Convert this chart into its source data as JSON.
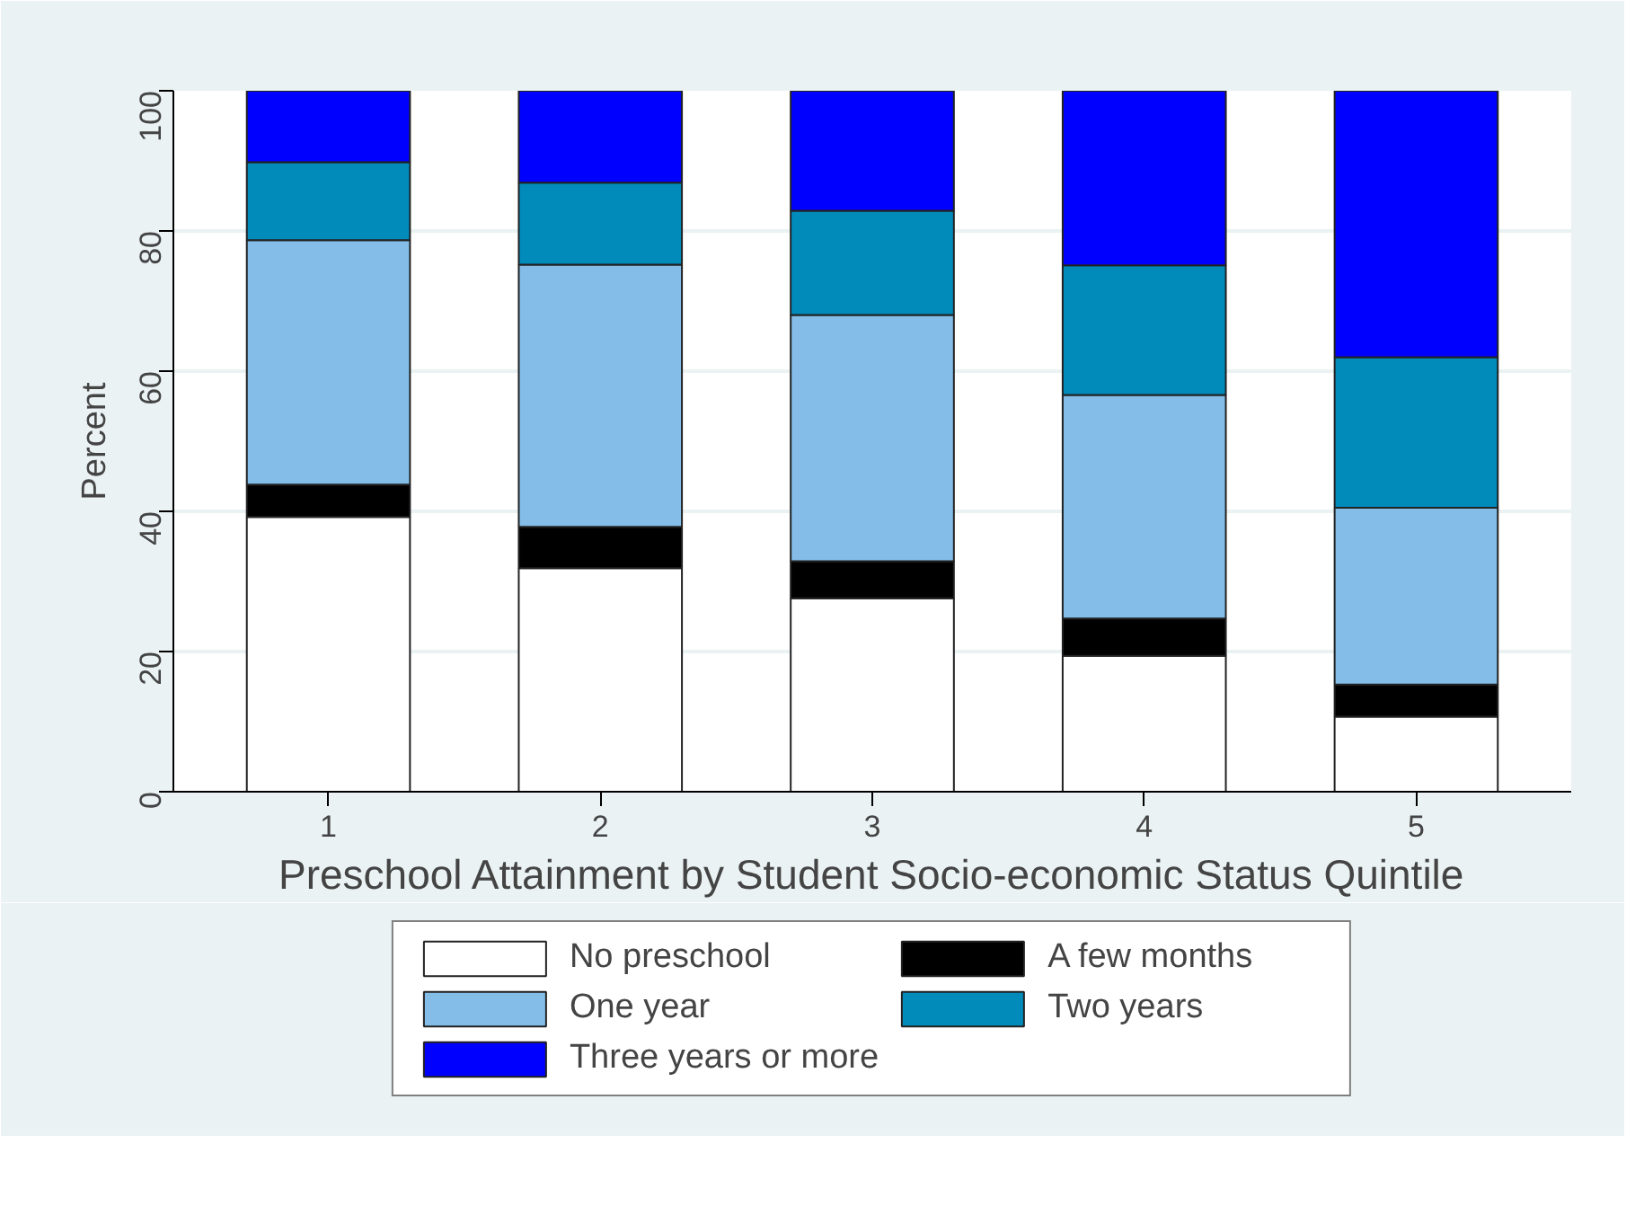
{
  "chart_data": {
    "type": "bar",
    "stacked": true,
    "xlabel": "Preschool Attainment by Student Socio-economic Status Quintile",
    "ylabel": "Percent",
    "categories": [
      "1",
      "2",
      "3",
      "4",
      "5"
    ],
    "series": [
      {
        "name": "No preschool",
        "color": "#ffffff",
        "values": [
          39.2,
          31.9,
          27.6,
          19.4,
          10.7
        ]
      },
      {
        "name": "A few months",
        "color": "#000000",
        "values": [
          4.6,
          5.9,
          5.3,
          5.3,
          4.6
        ]
      },
      {
        "name": "One year",
        "color": "#84bee8",
        "values": [
          34.9,
          37.4,
          35.1,
          31.9,
          25.2
        ]
      },
      {
        "name": "Two years",
        "color": "#008bbb",
        "values": [
          11.1,
          11.7,
          14.9,
          18.5,
          21.5
        ]
      },
      {
        "name": "Three years or more",
        "color": "#0000ff",
        "values": [
          10.2,
          13.1,
          17.1,
          24.9,
          38.0
        ]
      }
    ],
    "ylim": [
      0,
      100
    ],
    "yticks": [
      0,
      20,
      40,
      60,
      80,
      100
    ],
    "grid": "y",
    "legend": "bottom"
  }
}
